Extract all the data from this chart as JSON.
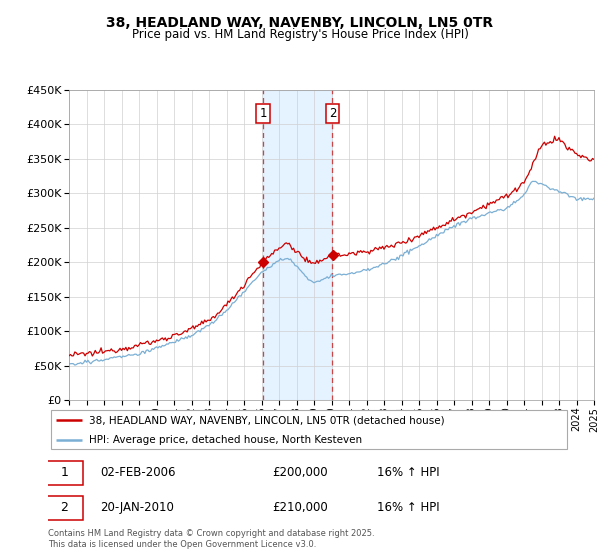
{
  "title": "38, HEADLAND WAY, NAVENBY, LINCOLN, LN5 0TR",
  "subtitle": "Price paid vs. HM Land Registry's House Price Index (HPI)",
  "ylim": [
    0,
    450000
  ],
  "ytick_values": [
    0,
    50000,
    100000,
    150000,
    200000,
    250000,
    300000,
    350000,
    400000,
    450000
  ],
  "red_color": "#cc0000",
  "blue_color": "#7bafd4",
  "annotation1": {
    "label": "1",
    "date": "02-FEB-2006",
    "price": "£200,000",
    "hpi": "16% ↑ HPI",
    "year": 2006.09
  },
  "annotation2": {
    "label": "2",
    "date": "20-JAN-2010",
    "price": "£210,000",
    "hpi": "16% ↑ HPI",
    "year": 2010.05
  },
  "legend_line1": "38, HEADLAND WAY, NAVENBY, LINCOLN, LN5 0TR (detached house)",
  "legend_line2": "HPI: Average price, detached house, North Kesteven",
  "footnote": "Contains HM Land Registry data © Crown copyright and database right 2025.\nThis data is licensed under the Open Government Licence v3.0.",
  "x_start_year": 1995,
  "x_end_year": 2025,
  "red_waypoints_x": [
    1995.0,
    1996.0,
    1997.0,
    1998.0,
    1999.0,
    2000.0,
    2001.0,
    2002.0,
    2003.0,
    2004.0,
    2005.0,
    2006.0,
    2006.09,
    2007.0,
    2007.5,
    2008.0,
    2008.5,
    2009.0,
    2009.5,
    2010.0,
    2010.05,
    2011.0,
    2012.0,
    2013.0,
    2014.0,
    2015.0,
    2016.0,
    2017.0,
    2018.0,
    2019.0,
    2020.0,
    2021.0,
    2021.5,
    2022.0,
    2022.5,
    2023.0,
    2023.5,
    2024.0,
    2024.5,
    2025.0
  ],
  "red_waypoints_y": [
    65000,
    68000,
    71000,
    74000,
    78000,
    85000,
    93000,
    102000,
    115000,
    138000,
    168000,
    200000,
    200000,
    220000,
    228000,
    215000,
    205000,
    195000,
    205000,
    210000,
    210000,
    212000,
    215000,
    220000,
    228000,
    238000,
    250000,
    262000,
    272000,
    285000,
    295000,
    315000,
    340000,
    370000,
    375000,
    380000,
    365000,
    358000,
    350000,
    348000
  ],
  "blue_waypoints_x": [
    1995.0,
    1996.0,
    1997.0,
    1998.0,
    1999.0,
    2000.0,
    2001.0,
    2002.0,
    2003.0,
    2004.0,
    2005.0,
    2006.0,
    2007.0,
    2007.5,
    2008.0,
    2008.5,
    2009.0,
    2009.5,
    2010.0,
    2011.0,
    2012.0,
    2013.0,
    2014.0,
    2015.0,
    2016.0,
    2017.0,
    2018.0,
    2019.0,
    2020.0,
    2021.0,
    2021.5,
    2022.0,
    2022.5,
    2023.0,
    2023.5,
    2024.0,
    2024.5,
    2025.0
  ],
  "blue_waypoints_y": [
    52000,
    55000,
    58000,
    62000,
    67000,
    74000,
    82000,
    92000,
    107000,
    128000,
    155000,
    182000,
    200000,
    204000,
    192000,
    178000,
    168000,
    172000,
    178000,
    182000,
    188000,
    196000,
    208000,
    222000,
    238000,
    252000,
    263000,
    272000,
    278000,
    298000,
    318000,
    315000,
    308000,
    304000,
    298000,
    292000,
    292000,
    293000
  ]
}
